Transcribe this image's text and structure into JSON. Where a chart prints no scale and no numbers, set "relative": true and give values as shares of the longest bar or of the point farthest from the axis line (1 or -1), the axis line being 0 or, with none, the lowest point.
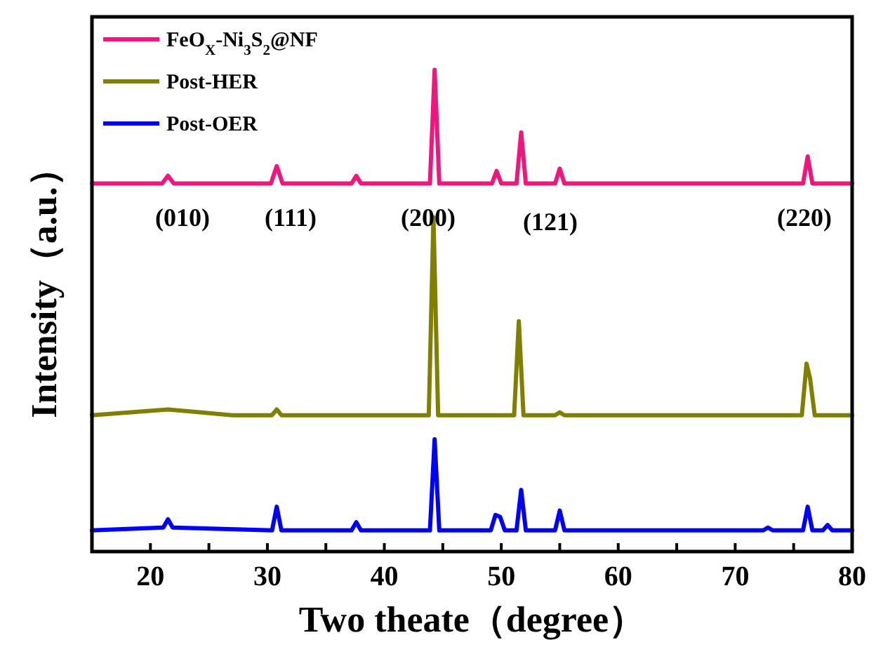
{
  "chart_data": {
    "type": "line",
    "relative": true,
    "xlabel": "Two theate（degree）",
    "ylabel": "Intensity（a.u.）",
    "xlim": [
      15,
      80
    ],
    "xticks": [
      20,
      {
        "value": 25,
        "label": null
      },
      30,
      {
        "value": 35,
        "label": null
      },
      40,
      {
        "value": 45,
        "label": null
      },
      50,
      {
        "value": 55,
        "label": null
      },
      60,
      {
        "value": 65,
        "label": null
      },
      70,
      {
        "value": 75,
        "label": null
      },
      80
    ],
    "legend": "top left",
    "grid": false,
    "marker": "none",
    "line_style": "solid",
    "tick_labels": "x",
    "series": [
      {
        "name": "FeO$_{X}$-Ni$_{3}$S$_{2}$@NF",
        "color": "#f0167e",
        "x": [
          15,
          21,
          21.5,
          22,
          30.3,
          30.8,
          31.3,
          37.2,
          37.6,
          38,
          43.9,
          44.3,
          44.7,
          49.2,
          49.6,
          50,
          51.3,
          51.7,
          52.1,
          54.6,
          55,
          55.4,
          75.8,
          76.2,
          76.6,
          80
        ],
        "values": [
          0.764,
          0.764,
          0.78,
          0.764,
          0.764,
          0.8,
          0.764,
          0.764,
          0.78,
          0.764,
          0.764,
          1.0,
          0.764,
          0.764,
          0.79,
          0.764,
          0.764,
          0.87,
          0.764,
          0.764,
          0.795,
          0.764,
          0.764,
          0.82,
          0.764,
          0.764
        ]
      },
      {
        "name": "Post-HER",
        "color": "#808000",
        "x": [
          15,
          21.5,
          27,
          30.4,
          30.8,
          31.2,
          43.8,
          44.2,
          44.6,
          51.1,
          51.5,
          51.9,
          54.6,
          55,
          55.4,
          75.7,
          76.1,
          76.4,
          76.8,
          80
        ],
        "values": [
          0.283,
          0.295,
          0.283,
          0.283,
          0.295,
          0.283,
          0.283,
          0.694,
          0.283,
          0.283,
          0.478,
          0.283,
          0.283,
          0.289,
          0.283,
          0.283,
          0.39,
          0.36,
          0.283,
          0.283
        ]
      },
      {
        "name": "Post-OER",
        "color": "#0000ff",
        "x": [
          15,
          21.1,
          21.5,
          21.9,
          30.4,
          30.8,
          31.2,
          37.2,
          37.6,
          38,
          43.9,
          44.3,
          44.7,
          49.1,
          49.5,
          49.9,
          50.3,
          51.3,
          51.7,
          52.1,
          54.6,
          55,
          55.4,
          72.4,
          72.8,
          73.2,
          75.8,
          76.2,
          76.6,
          77.5,
          77.9,
          78.3,
          80
        ],
        "values": [
          0.044,
          0.05,
          0.067,
          0.05,
          0.044,
          0.093,
          0.044,
          0.044,
          0.061,
          0.044,
          0.044,
          0.233,
          0.044,
          0.044,
          0.076,
          0.072,
          0.044,
          0.044,
          0.128,
          0.044,
          0.044,
          0.085,
          0.044,
          0.044,
          0.05,
          0.044,
          0.044,
          0.093,
          0.044,
          0.044,
          0.055,
          0.044,
          0.044
        ]
      }
    ],
    "annotations": [
      "(010)",
      "(111)",
      "(200)",
      "(121)",
      "(220)"
    ]
  }
}
